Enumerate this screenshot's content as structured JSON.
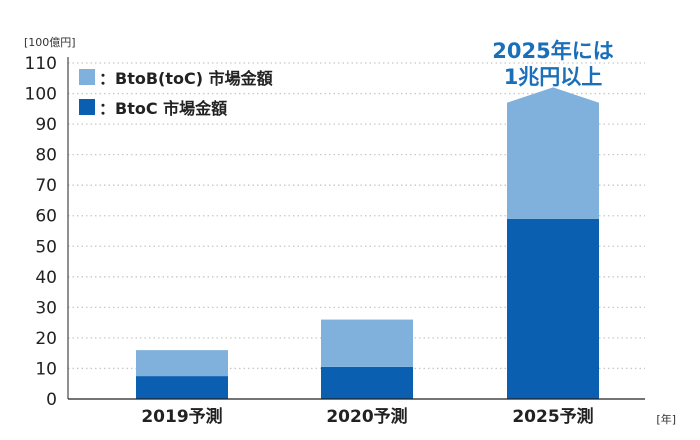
{
  "chart_data": {
    "type": "bar",
    "stacked": true,
    "title": "",
    "categories": [
      "2019予測",
      "2020予測",
      "2025予測"
    ],
    "series": [
      {
        "name": "：BtoC 市場金額",
        "values": [
          7.5,
          10.5,
          59
        ]
      },
      {
        "name": "：BtoB(toC) 市場金額",
        "values": [
          8.5,
          15.5,
          38
        ]
      }
    ],
    "ylabel": "[100億円]",
    "xlabel": "[年]",
    "ylim": [
      0,
      110
    ],
    "yticks": [
      0,
      10,
      20,
      30,
      40,
      50,
      60,
      70,
      80,
      90,
      100,
      110
    ],
    "grid": "horizontal-dotted",
    "legend_position": "top-left",
    "annotation": {
      "category": "2025予測",
      "lines": [
        "2025年には",
        "1兆円以上"
      ],
      "arrow_value": 102
    },
    "colors": {
      "BtoC": "#0b5fb0",
      "BtoB_toC": "#80b1dc",
      "annotation": "#1a6fb8",
      "grid": "#c8c8c8",
      "axis": "#222222"
    }
  }
}
